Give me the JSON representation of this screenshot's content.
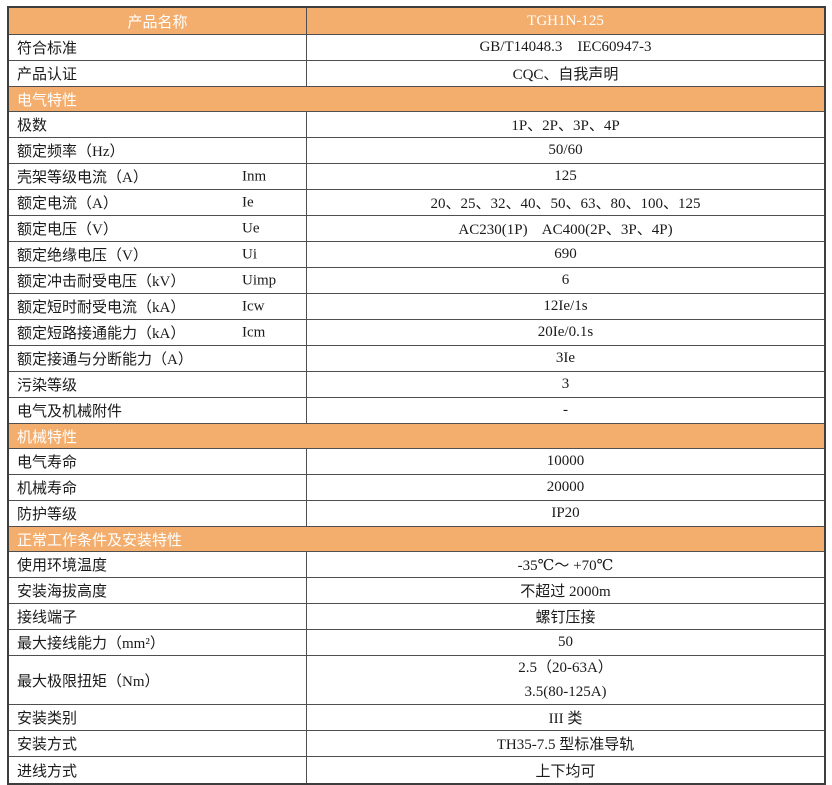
{
  "colors": {
    "accent_orange": "#F3AE6E",
    "section_text": "#FFFFFF",
    "border_dark": "#3D3D3D",
    "border_inner": "#4F4F4F",
    "text": "#1A1A1A"
  },
  "table": {
    "product_header": {
      "label": "产品名称",
      "value": "TGH1N-125"
    },
    "pre_rows": [
      {
        "label": "符合标准",
        "value": "GB/T14048.3    IEC60947-3"
      },
      {
        "label": "产品认证",
        "value": "CQC、自我声明"
      }
    ],
    "sections": [
      {
        "title": "电气特性",
        "rows": [
          {
            "label": "极数",
            "value": "1P、2P、3P、4P"
          },
          {
            "label": "额定频率（Hz）",
            "value": "50/60"
          },
          {
            "label": "壳架等级电流（A）",
            "symbol": "Inm",
            "value": "125"
          },
          {
            "label": "额定电流（A）",
            "symbol": "Ie",
            "value": "20、25、32、40、50、63、80、100、125"
          },
          {
            "label": "额定电压（V）",
            "symbol": "Ue",
            "value": "AC230(1P)    AC400(2P、3P、4P)"
          },
          {
            "label": "额定绝缘电压（V）",
            "symbol": "Ui",
            "value": "690"
          },
          {
            "label": "额定冲击耐受电压（kV）",
            "symbol": "Uimp",
            "value": "6"
          },
          {
            "label": "额定短时耐受电流（kA）",
            "symbol": "Icw",
            "value": "12Ie/1s"
          },
          {
            "label": "额定短路接通能力（kA）",
            "symbol": "Icm",
            "value": "20Ie/0.1s"
          },
          {
            "label": "额定接通与分断能力（A）",
            "value": "3Ie"
          },
          {
            "label": "污染等级",
            "value": "3"
          },
          {
            "label": "电气及机械附件",
            "value": "-"
          }
        ]
      },
      {
        "title": "机械特性",
        "rows": [
          {
            "label": "电气寿命",
            "value": "10000"
          },
          {
            "label": "机械寿命",
            "value": "20000"
          },
          {
            "label": "防护等级",
            "value": "IP20"
          }
        ]
      },
      {
        "title": "正常工作条件及安装特性",
        "rows": [
          {
            "label": "使用环境温度",
            "value": "-35℃～ +70℃"
          },
          {
            "label": "安装海拔高度",
            "value": "不超过 2000m"
          },
          {
            "label": "接线端子",
            "value": "螺钉压接"
          },
          {
            "label": "最大接线能力（mm²）",
            "value": "50"
          },
          {
            "label": "最大极限扭矩（Nm）",
            "value_lines": [
              "2.5（20-63A）",
              "3.5(80-125A)"
            ]
          },
          {
            "label": "安装类别",
            "value": "III 类"
          },
          {
            "label": "安装方式",
            "value": "TH35-7.5 型标准导轨"
          },
          {
            "label": "进线方式",
            "value": "上下均可"
          }
        ]
      }
    ]
  }
}
